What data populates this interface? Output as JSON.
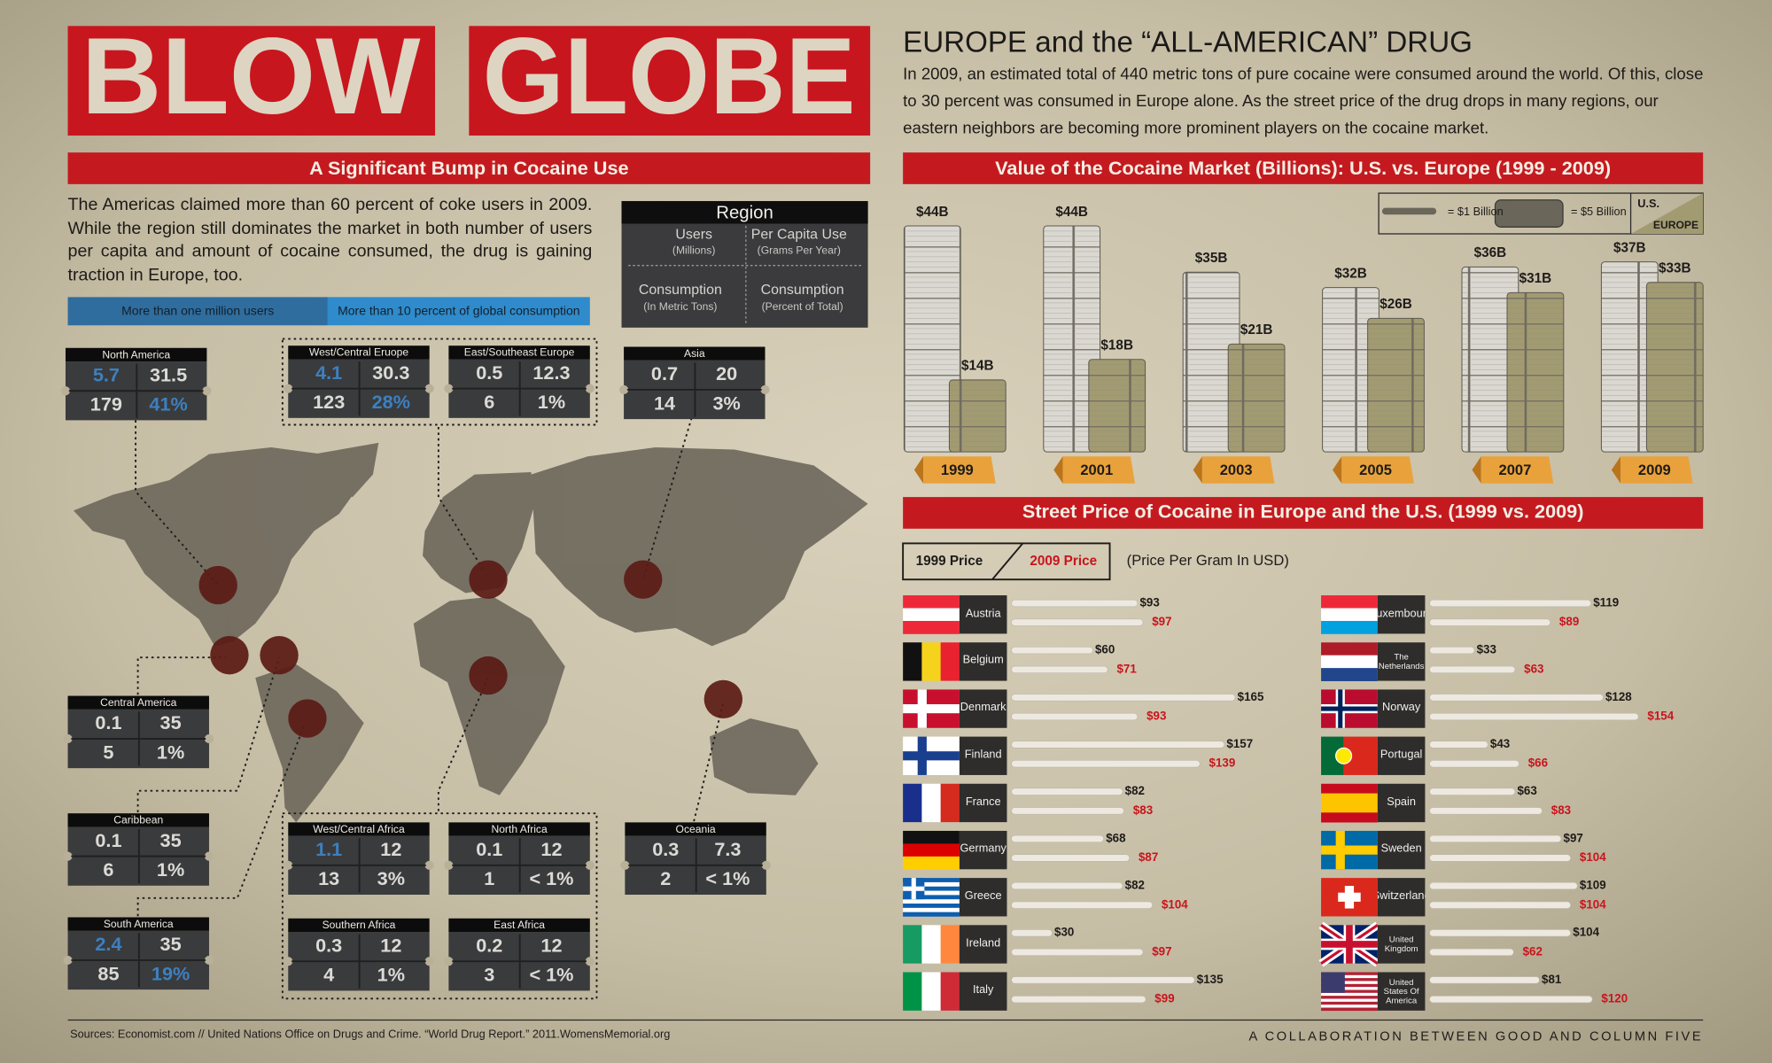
{
  "header": {
    "title_words": [
      "BLOW",
      "GLOBE"
    ],
    "headline": "EUROPE and the “ALL-AMERICAN” DRUG",
    "intro": "In 2009, an estimated total of 440 metric tons of pure cocaine were consumed around the world. Of this, close to 30 percent was consumed in Europe alone. As the street price of the drug drops in many  regions, our eastern neighbors are becoming more prominent players on the cocaine market."
  },
  "usage": {
    "heading": "A Significant Bump in Cocaine Use",
    "text": "The Americas claimed more than 60 percent of coke users in 2009. While the region still dominates the market in both number of users per capita and amount of cocaine consumed, the drug is gaining traction in Europe, too.",
    "legend": [
      "More than one million users",
      "More than 10 percent of global consumption"
    ],
    "legend_colors": [
      "#2f6d9e",
      "#2f8bcb"
    ],
    "highlight_color": "#3d80bf",
    "key": {
      "title": "Region",
      "cells": [
        {
          "label": "Users",
          "unit": "(Millions)"
        },
        {
          "label": "Per Capita Use",
          "unit": "(Grams Per Year)"
        },
        {
          "label": "Consumption",
          "unit": "(In Metric Tons)"
        },
        {
          "label": "Consumption",
          "unit": "(Percent of Total)"
        }
      ]
    },
    "regions": [
      {
        "name": "North America",
        "cells": [
          "5.7",
          "31.5",
          "179",
          "41%"
        ],
        "highlight": [
          true,
          false,
          false,
          true
        ]
      },
      {
        "name": "West/Central Eruope",
        "cells": [
          "4.1",
          "30.3",
          "123",
          "28%"
        ],
        "highlight": [
          true,
          false,
          false,
          true
        ]
      },
      {
        "name": "East/Southeast Europe",
        "cells": [
          "0.5",
          "12.3",
          "6",
          "1%"
        ],
        "highlight": [
          false,
          false,
          false,
          false
        ]
      },
      {
        "name": "Asia",
        "cells": [
          "0.7",
          "20",
          "14",
          "3%"
        ],
        "highlight": [
          false,
          false,
          false,
          false
        ]
      },
      {
        "name": "Central America",
        "cells": [
          "0.1",
          "35",
          "5",
          "1%"
        ],
        "highlight": [
          false,
          false,
          false,
          false
        ]
      },
      {
        "name": "Caribbean",
        "cells": [
          "0.1",
          "35",
          "6",
          "1%"
        ],
        "highlight": [
          false,
          false,
          false,
          false
        ]
      },
      {
        "name": "South America",
        "cells": [
          "2.4",
          "35",
          "85",
          "19%"
        ],
        "highlight": [
          true,
          false,
          false,
          true
        ]
      },
      {
        "name": "West/Central Africa",
        "cells": [
          "1.1",
          "12",
          "13",
          "3%"
        ],
        "highlight": [
          true,
          false,
          false,
          false
        ]
      },
      {
        "name": "North Africa",
        "cells": [
          "0.1",
          "12",
          "1",
          "< 1%"
        ],
        "highlight": [
          false,
          false,
          false,
          false
        ]
      },
      {
        "name": "Southern Africa",
        "cells": [
          "0.3",
          "12",
          "4",
          "1%"
        ],
        "highlight": [
          false,
          false,
          false,
          false
        ]
      },
      {
        "name": "East Africa",
        "cells": [
          "0.2",
          "12",
          "3",
          "< 1%"
        ],
        "highlight": [
          false,
          false,
          false,
          false
        ]
      },
      {
        "name": "Oceania",
        "cells": [
          "0.3",
          "7.3",
          "2",
          "< 1%"
        ],
        "highlight": [
          false,
          false,
          false,
          false
        ]
      }
    ]
  },
  "chart_data": [
    {
      "type": "bar",
      "title": "Value of the Cocaine Market (Billions): U.S. vs. Europe  (1999 - 2009)",
      "categories": [
        "1999",
        "2001",
        "2003",
        "2005",
        "2007",
        "2009"
      ],
      "legend_notes": [
        "= $1 Billion",
        "= $5 Billion"
      ],
      "series": [
        {
          "name": "U.S.",
          "color": "#dad8d1",
          "values": [
            44,
            44,
            35,
            32,
            36,
            37
          ],
          "value_labels": [
            "$44B",
            "$44B",
            "$35B",
            "$32B",
            "$36B",
            "$37B"
          ]
        },
        {
          "name": "EUROPE",
          "color": "#a29b72",
          "values": [
            14,
            18,
            21,
            26,
            31,
            33
          ],
          "value_labels": [
            "$14B",
            "$18B",
            "$21B",
            "$26B",
            "$31B",
            "$33B"
          ]
        }
      ]
    },
    {
      "type": "bar",
      "orientation": "horizontal",
      "title": "Street Price of Cocaine in Europe and the U.S. (1999 vs. 2009)",
      "note": "(Price Per Gram In USD)",
      "categories": [
        "Austria",
        "Belgium",
        "Denmark",
        "Finland",
        "France",
        "Germany",
        "Greece",
        "Ireland",
        "Italy",
        "Luxembourg",
        "The Netherlands",
        "Norway",
        "Portugal",
        "Spain",
        "Sweden",
        "Switzerland",
        "United Kingdom",
        "United States Of America"
      ],
      "series": [
        {
          "name": "1999 Price",
          "color": "#1e1c1a",
          "values": [
            93,
            60,
            165,
            157,
            82,
            68,
            82,
            30,
            135,
            119,
            33,
            128,
            43,
            63,
            97,
            109,
            104,
            81
          ],
          "value_labels": [
            "$93",
            "$60",
            "$165",
            "$157",
            "$82",
            "$68",
            "$82",
            "$30",
            "$135",
            "$119",
            "$33",
            "$128",
            "$43",
            "$63",
            "$97",
            "$109",
            "$104",
            "$81"
          ]
        },
        {
          "name": "2009 Price",
          "color": "#c8151d",
          "values": [
            97,
            71,
            93,
            139,
            83,
            87,
            104,
            97,
            99,
            89,
            63,
            154,
            66,
            83,
            104,
            104,
            62,
            120
          ],
          "value_labels": [
            "$97",
            "$71",
            "$93",
            "$139",
            "$83",
            "$87",
            "$104",
            "$97",
            "$99",
            "$89",
            "$63",
            "$154",
            "$66",
            "$83",
            "$104",
            "$104",
            "$62",
            "$120"
          ]
        }
      ]
    }
  ],
  "footer": {
    "sources": "Sources: Economist.com  // United Nations Office on Drugs and Crime. “World Drug Report.” 2011.WomensMemorial.org",
    "credit": "A COLLABORATION BETWEEN GOOD AND COLUMN FIVE"
  }
}
